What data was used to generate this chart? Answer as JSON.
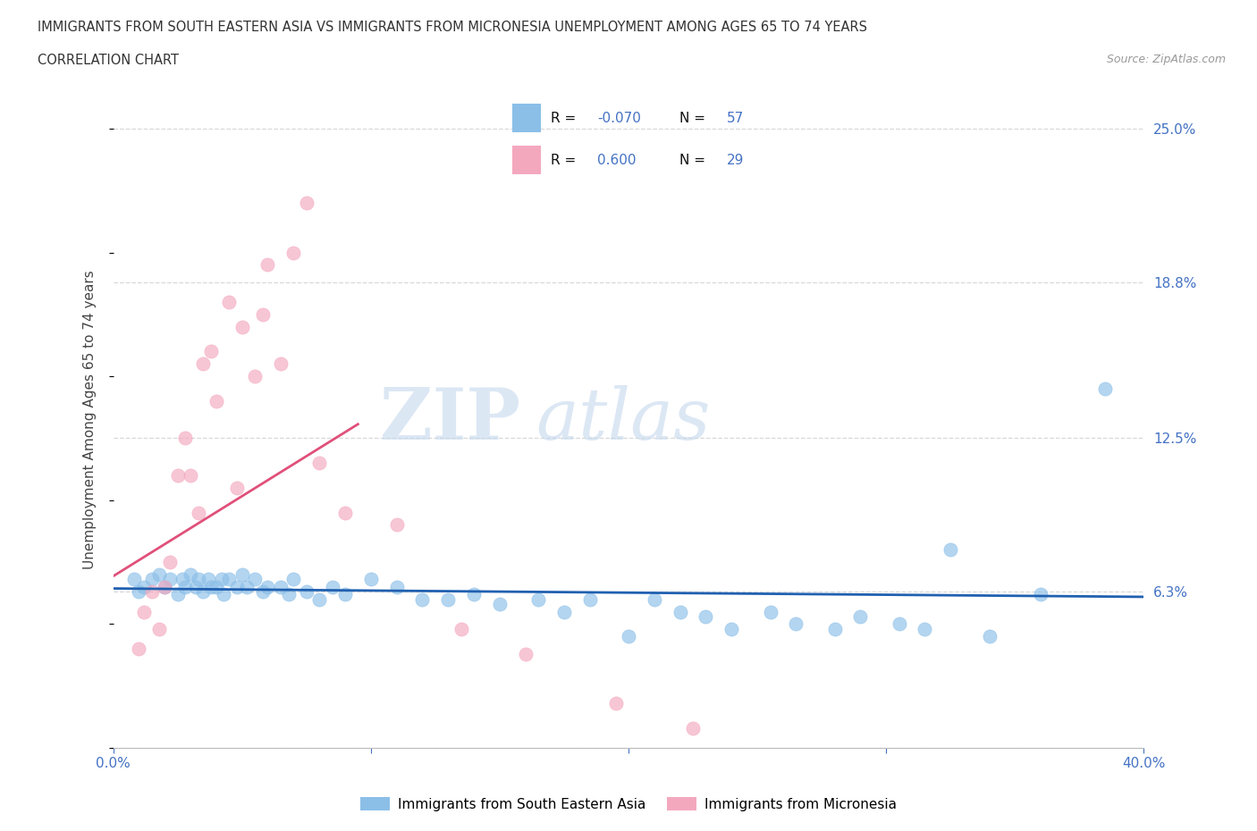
{
  "title_line1": "IMMIGRANTS FROM SOUTH EASTERN ASIA VS IMMIGRANTS FROM MICRONESIA UNEMPLOYMENT AMONG AGES 65 TO 74 YEARS",
  "title_line2": "CORRELATION CHART",
  "source_text": "Source: ZipAtlas.com",
  "ylabel": "Unemployment Among Ages 65 to 74 years",
  "xlim": [
    0.0,
    0.4
  ],
  "ylim": [
    0.0,
    0.265
  ],
  "y_tick_positions": [
    0.0,
    0.063,
    0.125,
    0.188,
    0.25
  ],
  "y_tick_labels_right": [
    "",
    "6.3%",
    "12.5%",
    "18.8%",
    "25.0%"
  ],
  "r_sea": -0.07,
  "n_sea": 57,
  "r_mic": 0.6,
  "n_mic": 29,
  "color_sea": "#8bbfe8",
  "color_mic": "#f4a8be",
  "trendline_color_sea": "#2060b0",
  "trendline_color_mic": "#e0507a",
  "background_color": "#ffffff",
  "grid_color": "#d8d8d8",
  "legend_label_sea": "Immigrants from South Eastern Asia",
  "legend_label_mic": "Immigrants from Micronesia",
  "sea_x": [
    0.008,
    0.01,
    0.012,
    0.015,
    0.018,
    0.02,
    0.022,
    0.025,
    0.027,
    0.028,
    0.03,
    0.032,
    0.033,
    0.035,
    0.037,
    0.038,
    0.04,
    0.042,
    0.043,
    0.045,
    0.048,
    0.05,
    0.052,
    0.055,
    0.058,
    0.06,
    0.065,
    0.068,
    0.07,
    0.075,
    0.08,
    0.085,
    0.09,
    0.1,
    0.11,
    0.12,
    0.13,
    0.14,
    0.15,
    0.165,
    0.175,
    0.185,
    0.2,
    0.21,
    0.22,
    0.23,
    0.24,
    0.255,
    0.265,
    0.28,
    0.29,
    0.305,
    0.315,
    0.325,
    0.34,
    0.36,
    0.385
  ],
  "sea_y": [
    0.068,
    0.063,
    0.065,
    0.068,
    0.07,
    0.065,
    0.068,
    0.062,
    0.068,
    0.065,
    0.07,
    0.065,
    0.068,
    0.063,
    0.068,
    0.065,
    0.065,
    0.068,
    0.062,
    0.068,
    0.065,
    0.07,
    0.065,
    0.068,
    0.063,
    0.065,
    0.065,
    0.062,
    0.068,
    0.063,
    0.06,
    0.065,
    0.062,
    0.068,
    0.065,
    0.06,
    0.06,
    0.062,
    0.058,
    0.06,
    0.055,
    0.06,
    0.045,
    0.06,
    0.055,
    0.053,
    0.048,
    0.055,
    0.05,
    0.048,
    0.053,
    0.05,
    0.048,
    0.08,
    0.045,
    0.062,
    0.145
  ],
  "mic_x": [
    0.01,
    0.012,
    0.015,
    0.018,
    0.02,
    0.022,
    0.025,
    0.028,
    0.03,
    0.033,
    0.035,
    0.038,
    0.04,
    0.045,
    0.048,
    0.05,
    0.055,
    0.058,
    0.06,
    0.065,
    0.07,
    0.075,
    0.08,
    0.09,
    0.11,
    0.135,
    0.16,
    0.195,
    0.225
  ],
  "mic_y": [
    0.04,
    0.055,
    0.063,
    0.048,
    0.065,
    0.075,
    0.11,
    0.125,
    0.11,
    0.095,
    0.155,
    0.16,
    0.14,
    0.18,
    0.105,
    0.17,
    0.15,
    0.175,
    0.195,
    0.155,
    0.2,
    0.22,
    0.115,
    0.095,
    0.09,
    0.048,
    0.038,
    0.018,
    0.008
  ],
  "trendline_sea_x0": 0.0,
  "trendline_sea_x1": 0.4,
  "trendline_mic_x0": 0.0,
  "trendline_mic_x1": 0.095
}
